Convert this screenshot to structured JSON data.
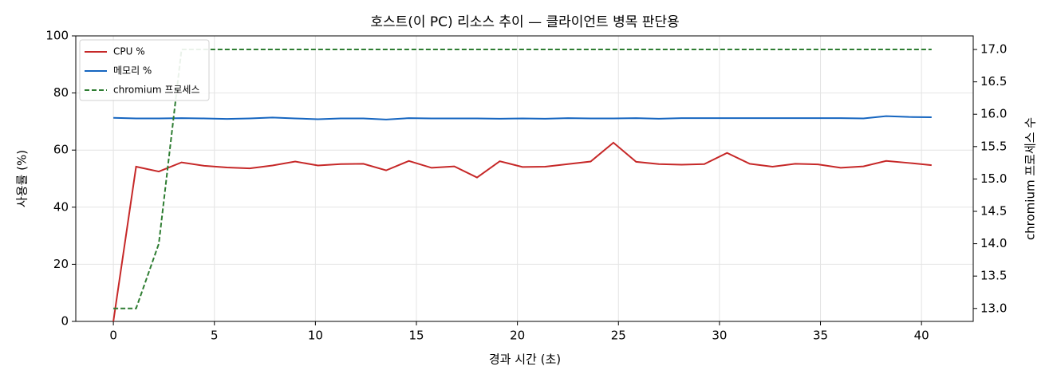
{
  "chart_data": {
    "type": "line",
    "title": "호스트(이 PC) 리소스 추이 — 클라이언트 병목 판단용",
    "x_label": "경과 시간 (초)",
    "y_label": "사용률 (%)",
    "y2_label": "chromium 프로세스 수",
    "x": [
      0,
      1.125,
      2.25,
      3.375,
      4.5,
      5.625,
      6.75,
      7.875,
      9,
      10.125,
      11.25,
      12.375,
      13.5,
      14.625,
      15.75,
      16.875,
      18,
      19.125,
      20.25,
      21.375,
      22.5,
      23.625,
      24.75,
      25.875,
      27,
      28.125,
      29.25,
      30.375,
      31.5,
      32.625,
      33.75,
      34.875,
      36,
      37.125,
      38.25,
      39.375,
      40.5
    ],
    "series": [
      {
        "name": "CPU %",
        "color": "#c62828",
        "dash": false,
        "values": [
          0,
          54.2,
          52.5,
          55.7,
          54.5,
          53.9,
          53.6,
          54.6,
          56.0,
          54.6,
          55.1,
          55.2,
          52.9,
          56.2,
          53.8,
          54.3,
          50.4,
          56.1,
          54.1,
          54.2,
          55.1,
          56.0,
          62.6,
          55.9,
          55.1,
          54.9,
          55.1,
          59.0,
          55.2,
          54.2,
          55.2,
          55.0,
          53.8,
          54.3,
          56.2,
          55.5,
          54.7
        ]
      },
      {
        "name": "메모리 %",
        "color": "#1565c0",
        "dash": false,
        "values": [
          71.3,
          71.1,
          71.1,
          71.2,
          71.1,
          70.9,
          71.1,
          71.4,
          71.1,
          70.8,
          71.1,
          71.1,
          70.7,
          71.2,
          71.1,
          71.1,
          71.1,
          71.0,
          71.1,
          71.0,
          71.2,
          71.1,
          71.1,
          71.2,
          71.0,
          71.2,
          71.2,
          71.2,
          71.2,
          71.2,
          71.2,
          71.2,
          71.2,
          71.1,
          71.9,
          71.6,
          71.5
        ]
      },
      {
        "name": "chromium 프로세스",
        "color": "#2e7d32",
        "dash": true,
        "axis": "y2",
        "values": [
          13,
          13,
          14,
          17,
          17,
          17,
          17,
          17,
          17,
          17,
          17,
          17,
          17,
          17,
          17,
          17,
          17,
          17,
          17,
          17,
          17,
          17,
          17,
          17,
          17,
          17,
          17,
          17,
          17,
          17,
          17,
          17,
          17,
          17,
          17,
          17,
          17
        ]
      }
    ],
    "xlim": [
      -1.86,
      42.56
    ],
    "xticks": [
      0,
      5,
      10,
      15,
      20,
      25,
      30,
      35,
      40
    ],
    "ylim": [
      0,
      100
    ],
    "yticks": [
      0,
      20,
      40,
      60,
      80,
      100
    ],
    "y2lim": [
      12.8,
      17.21
    ],
    "y2ticks": [
      {
        "value": 13,
        "label": "13.0"
      },
      13.5,
      {
        "value": 14,
        "label": "14.0"
      },
      14.5,
      {
        "value": 15,
        "label": "15.0"
      },
      15.5,
      {
        "value": 16,
        "label": "16.0"
      },
      16.5,
      {
        "value": 17,
        "label": "17.0"
      }
    ],
    "grid": true,
    "legend": "upper-left"
  }
}
